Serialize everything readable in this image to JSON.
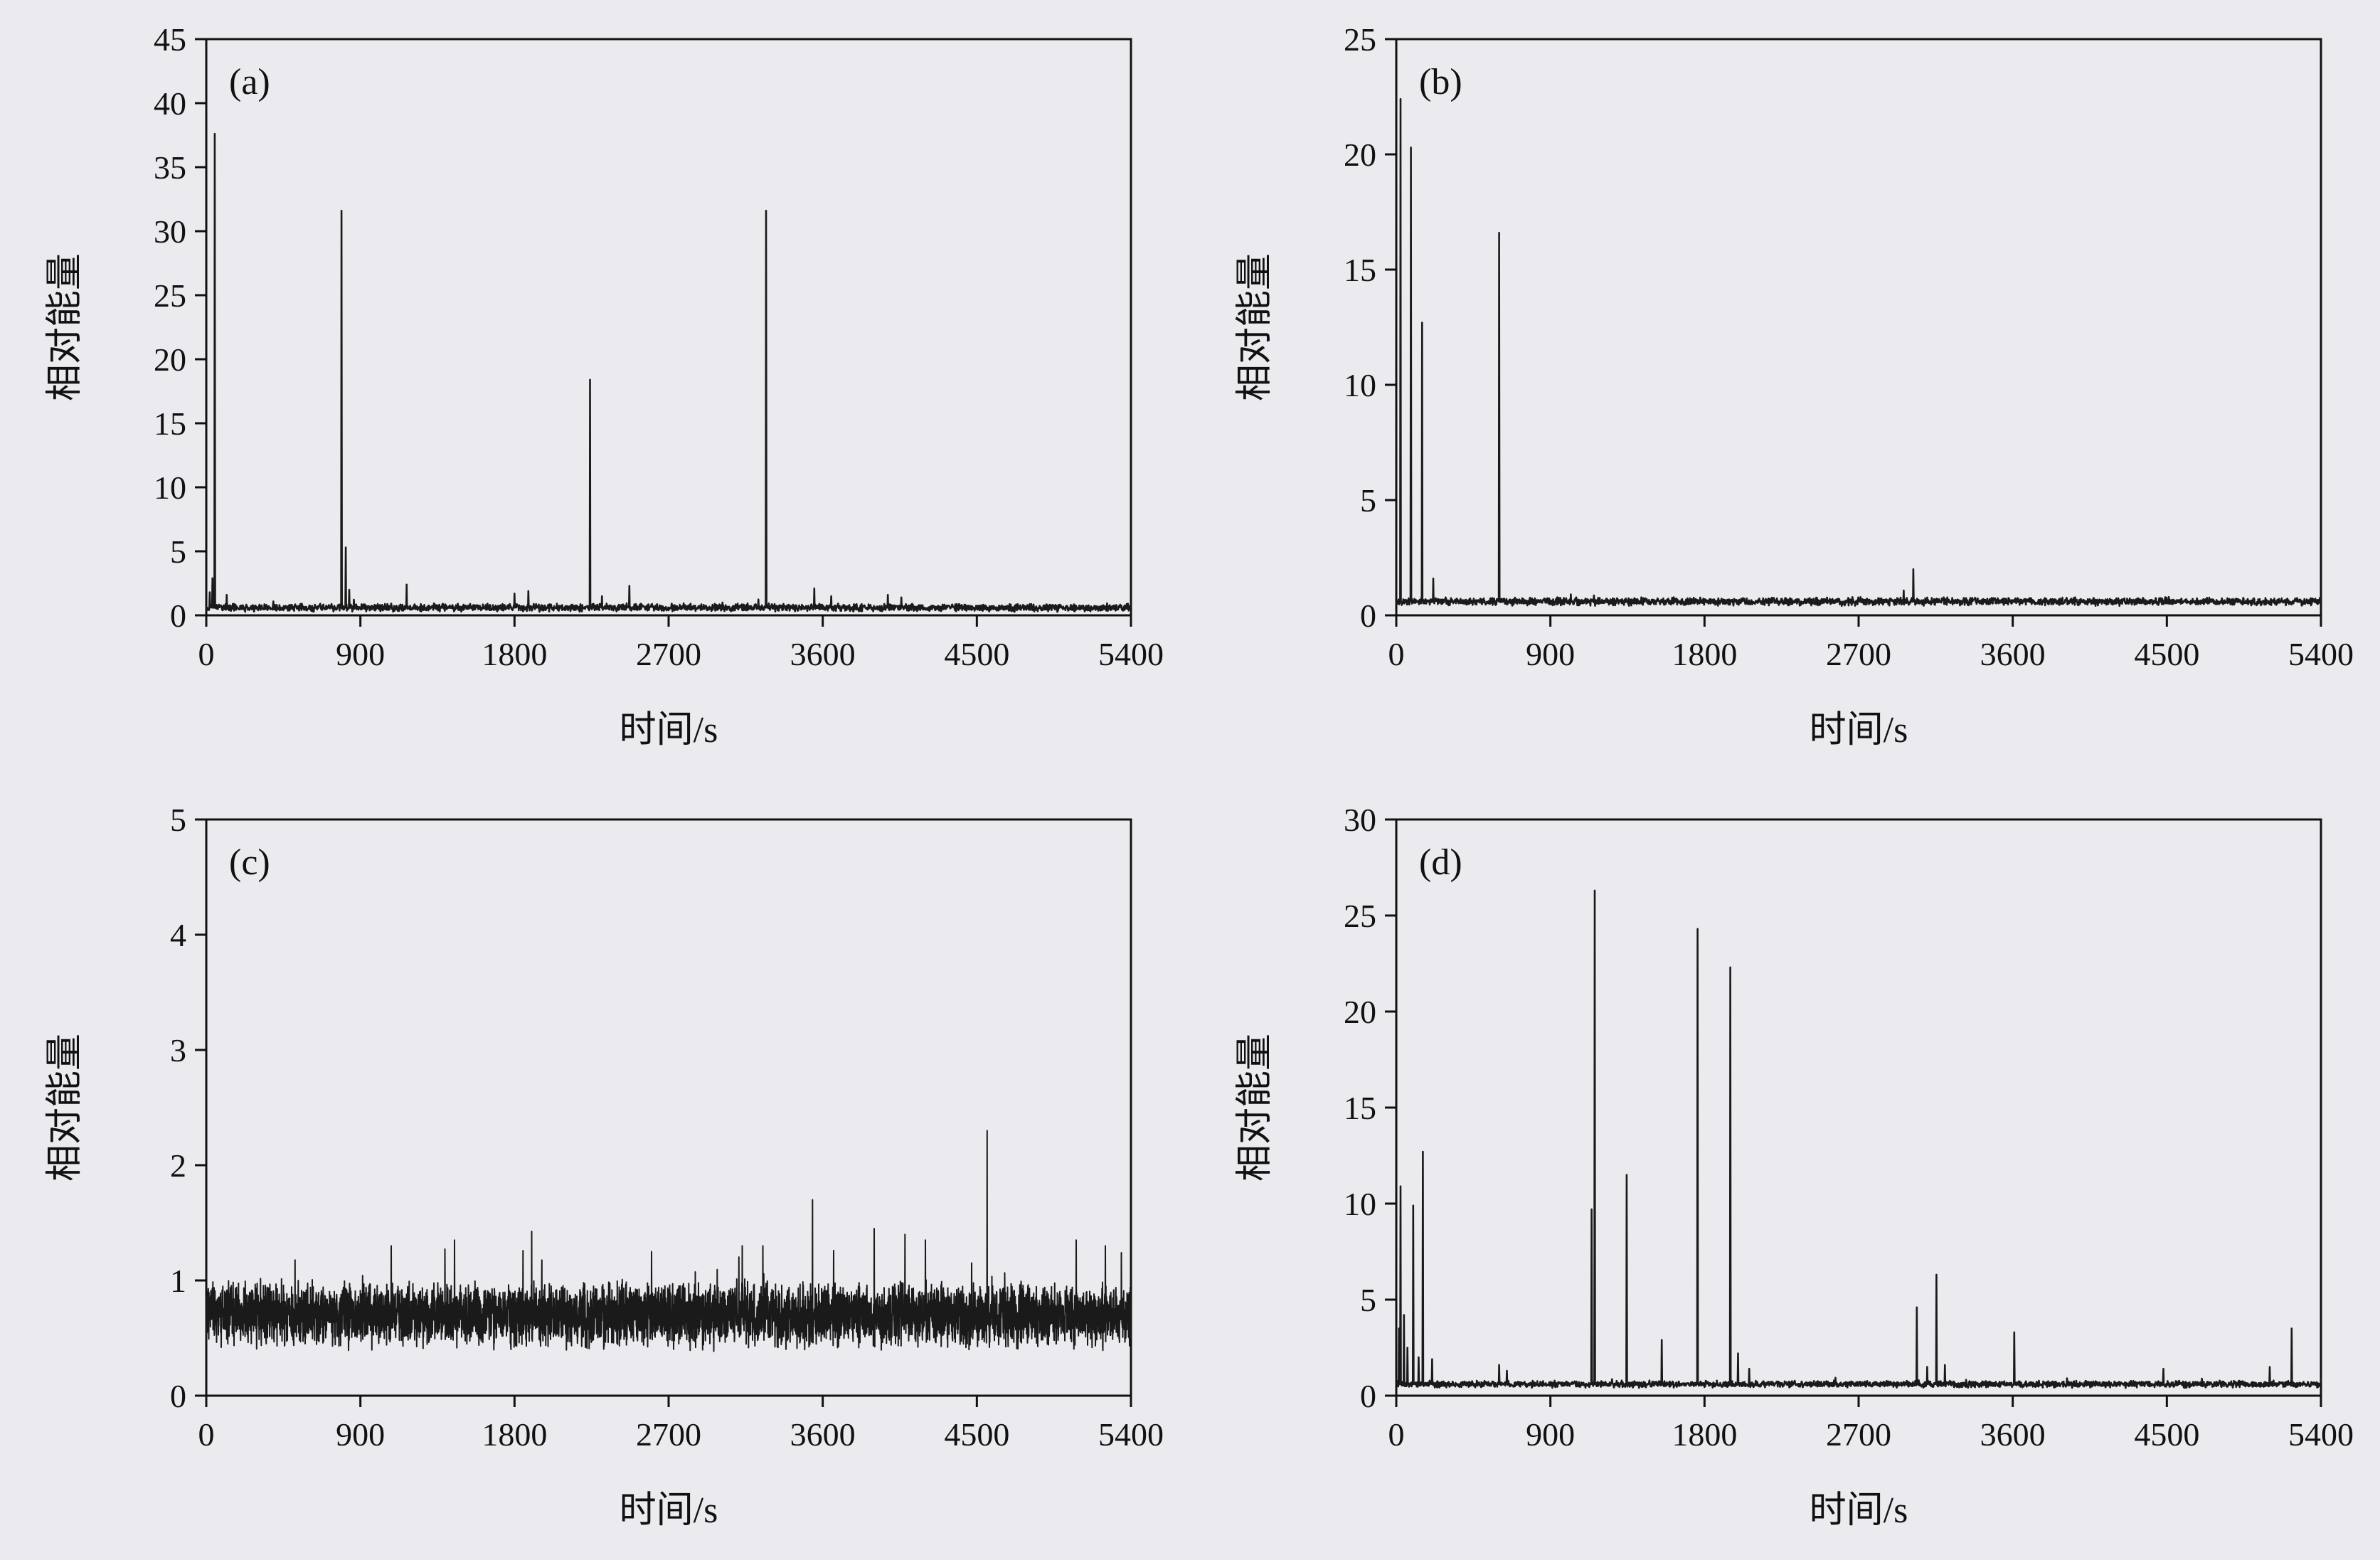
{
  "page": {
    "background": "#ebeaee"
  },
  "chart_data": [
    {
      "id": "a",
      "type": "line",
      "panel_label": "(a)",
      "xlabel": "时间/s",
      "ylabel": "相对能量",
      "xlim": [
        0,
        5400
      ],
      "xticks": [
        0,
        900,
        1800,
        2700,
        3600,
        4500,
        5400
      ],
      "ylim": [
        0,
        45
      ],
      "yticks": [
        0,
        5,
        10,
        15,
        20,
        25,
        30,
        35,
        40,
        45
      ],
      "line_color": "#1a1a1a",
      "grid": false,
      "legend": "none",
      "baseline": {
        "mean": 0.6,
        "noise_amplitude": 0.35,
        "points": 2400
      },
      "spikes": [
        [
          20,
          1.8
        ],
        [
          35,
          2.9
        ],
        [
          50,
          37.6
        ],
        [
          120,
          1.6
        ],
        [
          790,
          31.6
        ],
        [
          815,
          5.3
        ],
        [
          835,
          2.0
        ],
        [
          1170,
          2.4
        ],
        [
          1800,
          1.7
        ],
        [
          1880,
          1.9
        ],
        [
          2240,
          18.4
        ],
        [
          2310,
          1.5
        ],
        [
          2470,
          2.3
        ],
        [
          3270,
          31.6
        ],
        [
          3550,
          2.1
        ],
        [
          3650,
          1.5
        ],
        [
          3980,
          1.6
        ],
        [
          4060,
          1.4
        ]
      ]
    },
    {
      "id": "b",
      "type": "line",
      "panel_label": "(b)",
      "xlabel": "时间/s",
      "ylabel": "相对能量",
      "xlim": [
        0,
        5400
      ],
      "xticks": [
        0,
        900,
        1800,
        2700,
        3600,
        4500,
        5400
      ],
      "ylim": [
        0,
        25
      ],
      "yticks": [
        0,
        5,
        10,
        15,
        20,
        25
      ],
      "line_color": "#1a1a1a",
      "grid": false,
      "legend": "none",
      "baseline": {
        "mean": 0.6,
        "noise_amplitude": 0.2,
        "points": 2400
      },
      "spikes": [
        [
          25,
          22.4
        ],
        [
          85,
          20.3
        ],
        [
          150,
          12.7
        ],
        [
          215,
          1.6
        ],
        [
          600,
          16.6
        ],
        [
          3020,
          2.0
        ]
      ]
    },
    {
      "id": "c",
      "type": "line",
      "panel_label": "(c)",
      "xlabel": "时间/s",
      "ylabel": "相对能量",
      "xlim": [
        0,
        5400
      ],
      "xticks": [
        0,
        900,
        1800,
        2700,
        3600,
        4500,
        5400
      ],
      "ylim": [
        0,
        5
      ],
      "yticks": [
        0,
        1,
        2,
        3,
        4,
        5
      ],
      "line_color": "#1a1a1a",
      "grid": false,
      "legend": "none",
      "baseline": {
        "mean": 0.7,
        "noise_amplitude": 0.32,
        "points": 5200
      },
      "spikes": [
        [
          1080,
          1.3
        ],
        [
          1450,
          1.35
        ],
        [
          2600,
          1.25
        ],
        [
          3250,
          1.3
        ],
        [
          3540,
          1.7
        ],
        [
          3900,
          1.45
        ],
        [
          4080,
          1.4
        ],
        [
          4200,
          1.35
        ],
        [
          4560,
          2.3
        ],
        [
          5080,
          1.35
        ],
        [
          5250,
          1.3
        ]
      ]
    },
    {
      "id": "d",
      "type": "line",
      "panel_label": "(d)",
      "xlabel": "时间/s",
      "ylabel": "相对能量",
      "xlim": [
        0,
        5400
      ],
      "xticks": [
        0,
        900,
        1800,
        2700,
        3600,
        4500,
        5400
      ],
      "ylim": [
        0,
        30
      ],
      "yticks": [
        0,
        5,
        10,
        15,
        20,
        25,
        30
      ],
      "line_color": "#1a1a1a",
      "grid": false,
      "legend": "none",
      "baseline": {
        "mean": 0.6,
        "noise_amplitude": 0.2,
        "points": 2400
      },
      "spikes": [
        [
          15,
          3.5
        ],
        [
          25,
          10.9
        ],
        [
          45,
          4.2
        ],
        [
          65,
          2.5
        ],
        [
          100,
          9.9
        ],
        [
          130,
          2.0
        ],
        [
          155,
          12.7
        ],
        [
          210,
          1.9
        ],
        [
          600,
          1.6
        ],
        [
          645,
          1.3
        ],
        [
          1140,
          9.7
        ],
        [
          1158,
          26.3
        ],
        [
          1345,
          11.5
        ],
        [
          1550,
          2.9
        ],
        [
          1760,
          24.3
        ],
        [
          1950,
          22.3
        ],
        [
          1995,
          2.2
        ],
        [
          2060,
          1.4
        ],
        [
          3040,
          4.6
        ],
        [
          3100,
          1.5
        ],
        [
          3155,
          6.3
        ],
        [
          3205,
          1.6
        ],
        [
          3610,
          3.3
        ],
        [
          4480,
          1.4
        ],
        [
          5100,
          1.5
        ],
        [
          5230,
          3.5
        ]
      ]
    }
  ]
}
